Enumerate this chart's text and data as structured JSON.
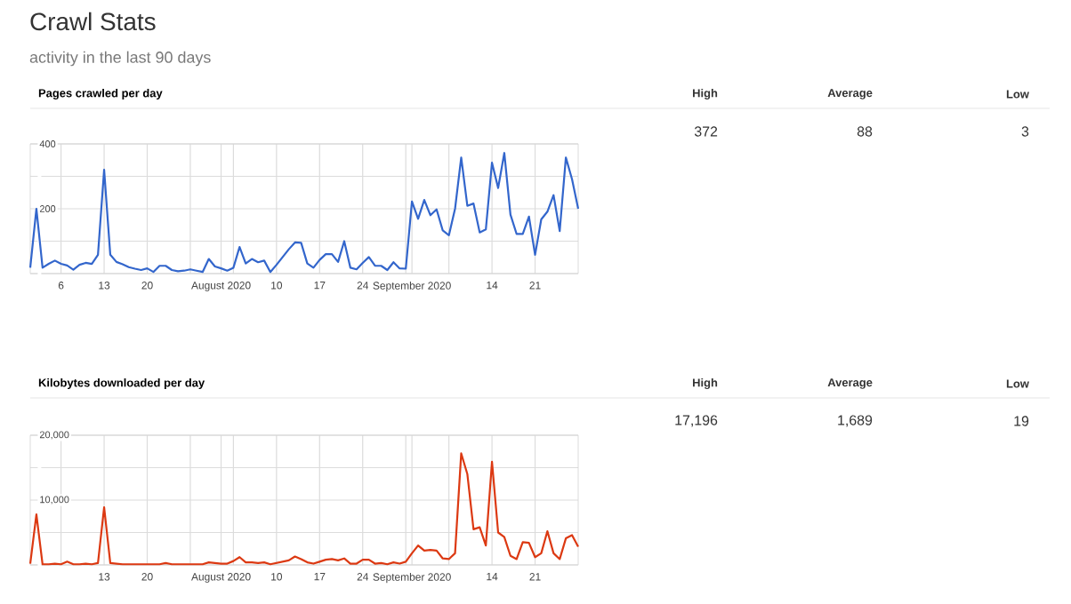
{
  "chart_data": [
    {
      "type": "other",
      "title": "Crawl Stats",
      "subtitle": "activity in the last 90 days"
    },
    {
      "type": "line",
      "title": "Pages crawled per day",
      "annotations": [
        "High",
        "Average",
        "Low",
        "372",
        "88",
        "3"
      ],
      "grid": true,
      "x": [
        "2020-07-01",
        "2020-07-02",
        "2020-07-03",
        "2020-07-04",
        "2020-07-05",
        "2020-07-06",
        "2020-07-07",
        "2020-07-08",
        "2020-07-09",
        "2020-07-10",
        "2020-07-11",
        "2020-07-12",
        "2020-07-13",
        "2020-07-14",
        "2020-07-15",
        "2020-07-16",
        "2020-07-17",
        "2020-07-18",
        "2020-07-19",
        "2020-07-20",
        "2020-07-21",
        "2020-07-22",
        "2020-07-23",
        "2020-07-24",
        "2020-07-25",
        "2020-07-26",
        "2020-07-27",
        "2020-07-28",
        "2020-07-29",
        "2020-07-30",
        "2020-07-31",
        "2020-08-01",
        "2020-08-02",
        "2020-08-03",
        "2020-08-04",
        "2020-08-05",
        "2020-08-06",
        "2020-08-07",
        "2020-08-08",
        "2020-08-09",
        "2020-08-10",
        "2020-08-11",
        "2020-08-12",
        "2020-08-13",
        "2020-08-14",
        "2020-08-15",
        "2020-08-16",
        "2020-08-17",
        "2020-08-18",
        "2020-08-19",
        "2020-08-20",
        "2020-08-21",
        "2020-08-22",
        "2020-08-23",
        "2020-08-24",
        "2020-08-25",
        "2020-08-26",
        "2020-08-27",
        "2020-08-28",
        "2020-08-29",
        "2020-08-30",
        "2020-08-31",
        "2020-09-01",
        "2020-09-02",
        "2020-09-03",
        "2020-09-04",
        "2020-09-05",
        "2020-09-06",
        "2020-09-07",
        "2020-09-08",
        "2020-09-09",
        "2020-09-10",
        "2020-09-11",
        "2020-09-12",
        "2020-09-13",
        "2020-09-14",
        "2020-09-15",
        "2020-09-16",
        "2020-09-17",
        "2020-09-18",
        "2020-09-19",
        "2020-09-20",
        "2020-09-21",
        "2020-09-22",
        "2020-09-23",
        "2020-09-24",
        "2020-09-25",
        "2020-09-26",
        "2020-09-27",
        "2020-09-28"
      ],
      "xlim": [
        "2020-07-01",
        "2020-09-28"
      ],
      "xticks": [
        {
          "value": "2020-07-06",
          "label": "6"
        },
        {
          "value": "2020-07-13",
          "label": "13"
        },
        {
          "value": "2020-07-20",
          "label": "20"
        },
        {
          "value": "2020-07-27",
          "label": null
        },
        {
          "value": "2020-08-01",
          "label": "August 2020"
        },
        {
          "value": "2020-08-03",
          "label": null
        },
        {
          "value": "2020-08-10",
          "label": "10"
        },
        {
          "value": "2020-08-17",
          "label": "17"
        },
        {
          "value": "2020-08-24",
          "label": "24"
        },
        {
          "value": "2020-08-31",
          "label": null
        },
        {
          "value": "2020-09-01",
          "label": "September 2020"
        },
        {
          "value": "2020-09-07",
          "label": null
        },
        {
          "value": "2020-09-14",
          "label": "14"
        },
        {
          "value": "2020-09-21",
          "label": "21"
        }
      ],
      "ylim": [
        0,
        400
      ],
      "yticks": [
        {
          "value": 0,
          "label": null
        },
        {
          "value": 100,
          "label": null
        },
        {
          "value": 200,
          "label": "200"
        },
        {
          "value": 300,
          "label": null
        },
        {
          "value": 400,
          "label": "400"
        }
      ],
      "series": [
        {
          "color": "#3366cc",
          "values": [
            18,
            200,
            18,
            30,
            40,
            30,
            25,
            12,
            27,
            33,
            30,
            58,
            320,
            58,
            36,
            29,
            20,
            15,
            11,
            16,
            5,
            24,
            24,
            11,
            7,
            9,
            13,
            9,
            5,
            45,
            22,
            16,
            9,
            18,
            82,
            31,
            45,
            35,
            40,
            5,
            27,
            51,
            75,
            96,
            95,
            31,
            18,
            42,
            60,
            60,
            36,
            100,
            18,
            13,
            33,
            51,
            24,
            24,
            11,
            35,
            16,
            15,
            222,
            169,
            227,
            180,
            198,
            133,
            118,
            200,
            358,
            209,
            216,
            127,
            136,
            342,
            264,
            372,
            182,
            122,
            122,
            176,
            58,
            167,
            191,
            242,
            131,
            358,
            291,
            200
          ]
        }
      ]
    },
    {
      "type": "line",
      "title": "Kilobytes downloaded per day",
      "annotations": [
        "High",
        "Average",
        "Low",
        "17,196",
        "1,689",
        "19"
      ],
      "grid": true,
      "x": [
        "2020-07-01",
        "2020-07-02",
        "2020-07-03",
        "2020-07-04",
        "2020-07-05",
        "2020-07-06",
        "2020-07-07",
        "2020-07-08",
        "2020-07-09",
        "2020-07-10",
        "2020-07-11",
        "2020-07-12",
        "2020-07-13",
        "2020-07-14",
        "2020-07-15",
        "2020-07-16",
        "2020-07-17",
        "2020-07-18",
        "2020-07-19",
        "2020-07-20",
        "2020-07-21",
        "2020-07-22",
        "2020-07-23",
        "2020-07-24",
        "2020-07-25",
        "2020-07-26",
        "2020-07-27",
        "2020-07-28",
        "2020-07-29",
        "2020-07-30",
        "2020-07-31",
        "2020-08-01",
        "2020-08-02",
        "2020-08-03",
        "2020-08-04",
        "2020-08-05",
        "2020-08-06",
        "2020-08-07",
        "2020-08-08",
        "2020-08-09",
        "2020-08-10",
        "2020-08-11",
        "2020-08-12",
        "2020-08-13",
        "2020-08-14",
        "2020-08-15",
        "2020-08-16",
        "2020-08-17",
        "2020-08-18",
        "2020-08-19",
        "2020-08-20",
        "2020-08-21",
        "2020-08-22",
        "2020-08-23",
        "2020-08-24",
        "2020-08-25",
        "2020-08-26",
        "2020-08-27",
        "2020-08-28",
        "2020-08-29",
        "2020-08-30",
        "2020-08-31",
        "2020-09-01",
        "2020-09-02",
        "2020-09-03",
        "2020-09-04",
        "2020-09-05",
        "2020-09-06",
        "2020-09-07",
        "2020-09-08",
        "2020-09-09",
        "2020-09-10",
        "2020-09-11",
        "2020-09-12",
        "2020-09-13",
        "2020-09-14",
        "2020-09-15",
        "2020-09-16",
        "2020-09-17",
        "2020-09-18",
        "2020-09-19",
        "2020-09-20",
        "2020-09-21",
        "2020-09-22",
        "2020-09-23",
        "2020-09-24",
        "2020-09-25",
        "2020-09-26",
        "2020-09-27",
        "2020-09-28"
      ],
      "xlim": [
        "2020-07-01",
        "2020-09-28"
      ],
      "xticks": [
        {
          "value": "2020-07-06",
          "label": null
        },
        {
          "value": "2020-07-13",
          "label": "13"
        },
        {
          "value": "2020-07-20",
          "label": "20"
        },
        {
          "value": "2020-07-27",
          "label": null
        },
        {
          "value": "2020-08-01",
          "label": "August 2020"
        },
        {
          "value": "2020-08-03",
          "label": null
        },
        {
          "value": "2020-08-10",
          "label": "10"
        },
        {
          "value": "2020-08-17",
          "label": "17"
        },
        {
          "value": "2020-08-24",
          "label": "24"
        },
        {
          "value": "2020-08-31",
          "label": null
        },
        {
          "value": "2020-09-01",
          "label": "September 2020"
        },
        {
          "value": "2020-09-07",
          "label": null
        },
        {
          "value": "2020-09-14",
          "label": "14"
        },
        {
          "value": "2020-09-21",
          "label": "21"
        }
      ],
      "ylim": [
        0,
        20000
      ],
      "yticks": [
        {
          "value": 0,
          "label": null
        },
        {
          "value": 5000,
          "label": null
        },
        {
          "value": 10000,
          "label": "10,000"
        },
        {
          "value": 15000,
          "label": null
        },
        {
          "value": 20000,
          "label": "20,000"
        }
      ],
      "series": [
        {
          "color": "#dc3912",
          "values": [
            200,
            7800,
            100,
            100,
            200,
            100,
            500,
            100,
            100,
            200,
            100,
            300,
            8900,
            300,
            200,
            100,
            100,
            100,
            100,
            100,
            100,
            100,
            300,
            100,
            100,
            100,
            100,
            100,
            100,
            400,
            300,
            200,
            200,
            600,
            1200,
            400,
            400,
            300,
            400,
            100,
            300,
            500,
            700,
            1300,
            900,
            400,
            200,
            500,
            800,
            900,
            700,
            1000,
            200,
            200,
            800,
            800,
            200,
            300,
            100,
            400,
            200,
            500,
            1800,
            3000,
            2200,
            2300,
            2200,
            1000,
            900,
            1800,
            17200,
            14000,
            5500,
            5800,
            3000,
            15900,
            5000,
            4300,
            1400,
            900,
            3500,
            3400,
            1200,
            1800,
            5200,
            1800,
            900,
            4100,
            4600,
            2800
          ]
        }
      ]
    }
  ]
}
